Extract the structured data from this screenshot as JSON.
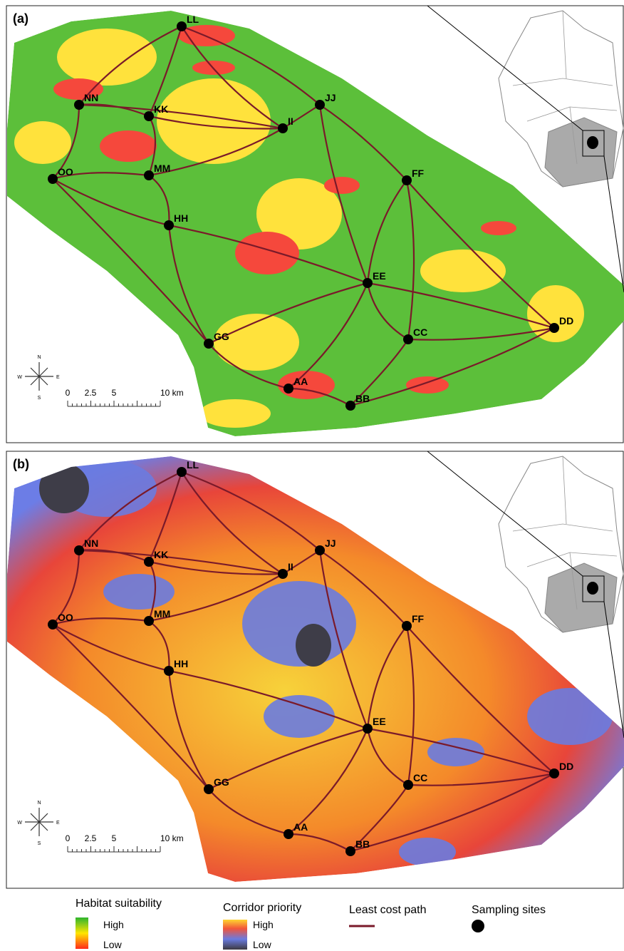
{
  "panels": [
    {
      "label": "(a)"
    },
    {
      "label": "(b)"
    }
  ],
  "sites": [
    "LL",
    "NN",
    "KK",
    "JJ",
    "II",
    "OO",
    "MM",
    "FF",
    "HH",
    "EE",
    "DD",
    "CC",
    "GG",
    "AA",
    "BB"
  ],
  "scale_bar": {
    "labels": [
      "0",
      "2.5",
      "5",
      "10 km"
    ]
  },
  "compass": {
    "n": "N",
    "e": "E",
    "s": "S",
    "w": "W"
  },
  "legend": {
    "habitat_suitability": {
      "title": "Habitat suitability",
      "high": "High",
      "low": "Low"
    },
    "corridor_priority": {
      "title": "Corridor priority",
      "high": "High",
      "low": "Low"
    },
    "least_cost_path": {
      "title": "Least cost path"
    },
    "sampling_sites": {
      "title": "Sampling sites"
    }
  }
}
